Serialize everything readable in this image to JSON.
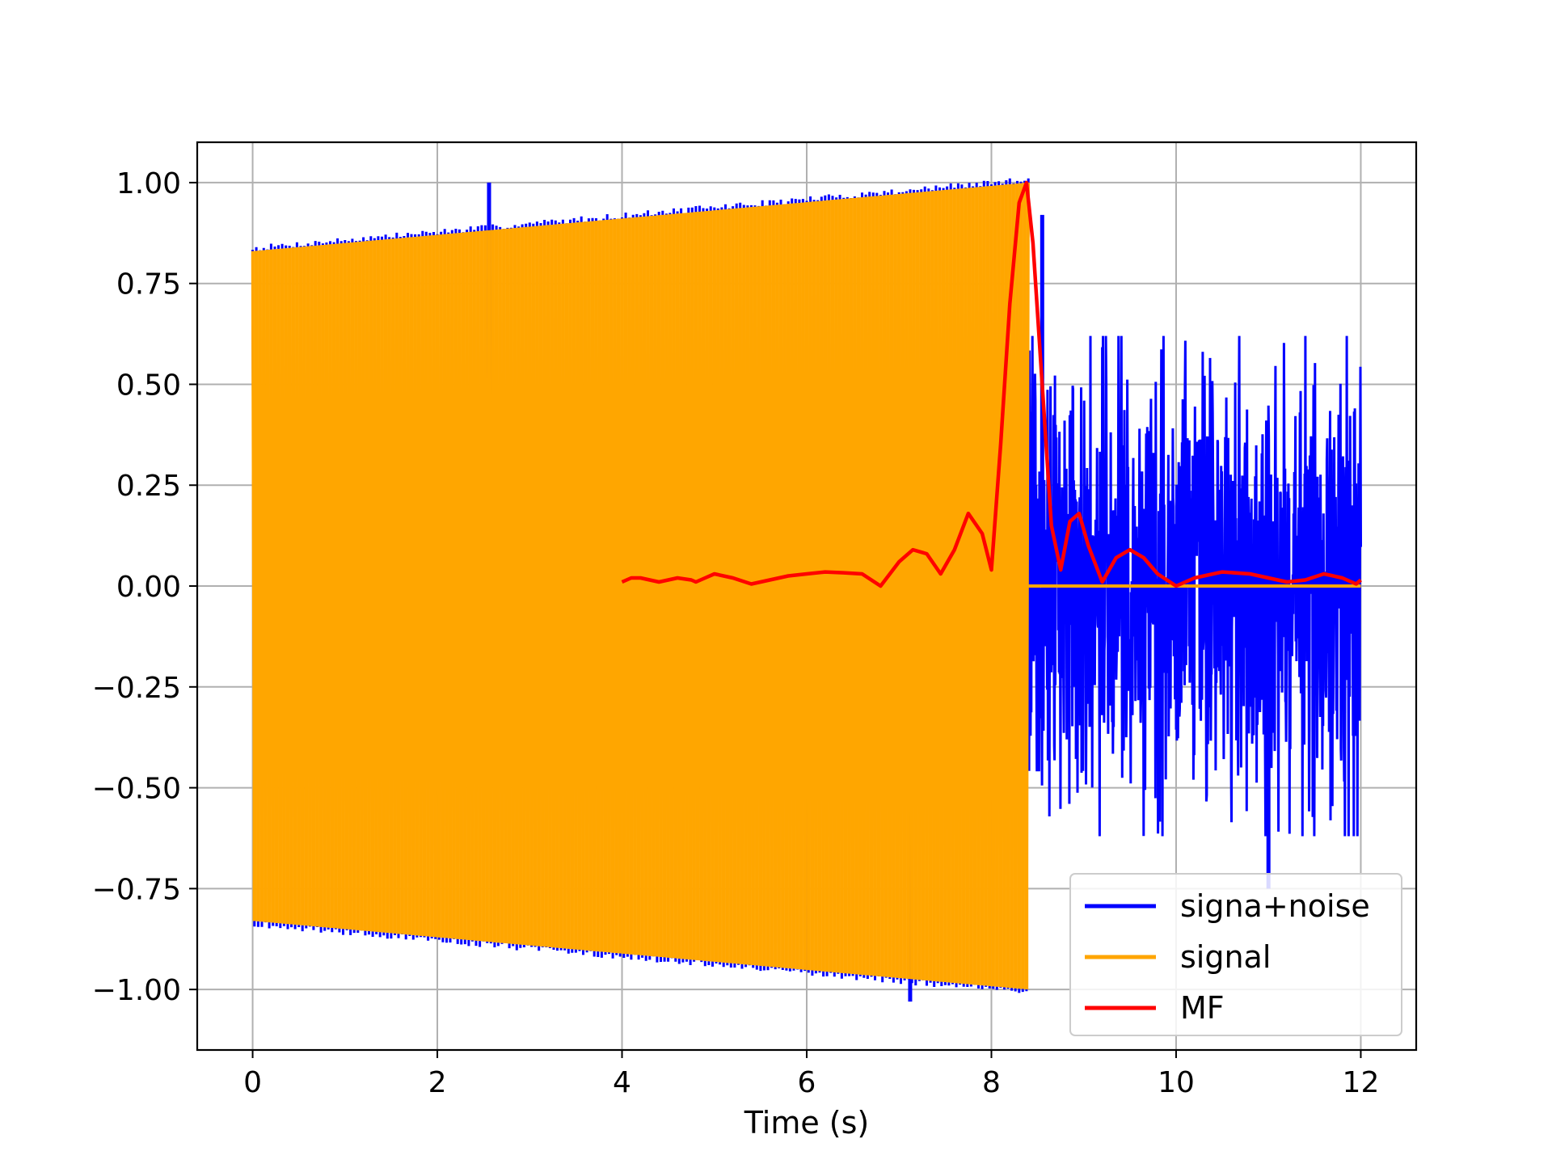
{
  "chart_data": {
    "type": "line",
    "title": "",
    "xlabel": "Time (s)",
    "ylabel": "",
    "xlim": [
      -0.6,
      12.6
    ],
    "ylim": [
      -1.15,
      1.1
    ],
    "x_ticks": [
      0,
      2,
      4,
      6,
      8,
      10,
      12
    ],
    "y_ticks": [
      1.0,
      0.75,
      0.5,
      0.25,
      0.0,
      -0.25,
      -0.5,
      -0.75,
      -1.0
    ],
    "x_tick_labels": [
      "0",
      "2",
      "4",
      "6",
      "8",
      "10",
      "12"
    ],
    "y_tick_labels": [
      "1.00",
      "0.75",
      "0.50",
      "0.25",
      "0.00",
      "−0.25",
      "−0.50",
      "−0.75",
      "−1.00"
    ],
    "grid": true,
    "legend_position": "lower-right",
    "series": [
      {
        "name": "signa+noise",
        "color": "#0000ff",
        "description_values": {
          "chirp_segment": {
            "x_start": 0.0,
            "x_end": 8.4,
            "amplitude_start": 0.83,
            "amplitude_end": 1.0
          },
          "noise_segment": {
            "x_start": 8.4,
            "x_end": 12.0,
            "peak_high": 0.92,
            "peak_low": -0.87
          },
          "spikes": [
            {
              "x": 2.56,
              "y": 1.0
            },
            {
              "x": 6.0,
              "y": -0.95
            },
            {
              "x": 7.12,
              "y": -1.03
            },
            {
              "x": 8.55,
              "y": 0.92
            },
            {
              "x": 11.0,
              "y": -0.75
            }
          ]
        }
      },
      {
        "name": "signal",
        "color": "#ffa500",
        "description_values": {
          "chirp_segment": {
            "x_start": 0.0,
            "x_end": 8.4,
            "amplitude_start": 0.83,
            "amplitude_end": 1.0
          },
          "zero_segment": {
            "x_start": 8.4,
            "x_end": 12.0,
            "y": 0.0
          }
        }
      },
      {
        "name": "MF",
        "color": "#ff0000",
        "x": [
          4.0,
          4.1,
          4.2,
          4.4,
          4.6,
          4.75,
          4.8,
          4.9,
          5.0,
          5.2,
          5.4,
          5.6,
          5.8,
          6.0,
          6.2,
          6.4,
          6.6,
          6.8,
          7.0,
          7.15,
          7.3,
          7.45,
          7.6,
          7.75,
          7.9,
          8.0,
          8.1,
          8.2,
          8.3,
          8.38,
          8.45,
          8.55,
          8.65,
          8.75,
          8.85,
          8.95,
          9.05,
          9.2,
          9.35,
          9.5,
          9.65,
          9.8,
          10.0,
          10.2,
          10.5,
          10.8,
          11.0,
          11.2,
          11.4,
          11.6,
          11.8,
          11.95,
          12.0
        ],
        "values": [
          0.01,
          0.02,
          0.02,
          0.01,
          0.02,
          0.015,
          0.01,
          0.02,
          0.03,
          0.02,
          0.005,
          0.015,
          0.025,
          0.03,
          0.035,
          0.033,
          0.03,
          0.0,
          0.06,
          0.09,
          0.08,
          0.03,
          0.09,
          0.18,
          0.13,
          0.04,
          0.35,
          0.7,
          0.95,
          1.0,
          0.85,
          0.5,
          0.15,
          0.04,
          0.16,
          0.18,
          0.1,
          0.01,
          0.07,
          0.09,
          0.07,
          0.03,
          0.0,
          0.02,
          0.035,
          0.03,
          0.02,
          0.01,
          0.015,
          0.03,
          0.02,
          0.005,
          0.015
        ]
      }
    ]
  }
}
